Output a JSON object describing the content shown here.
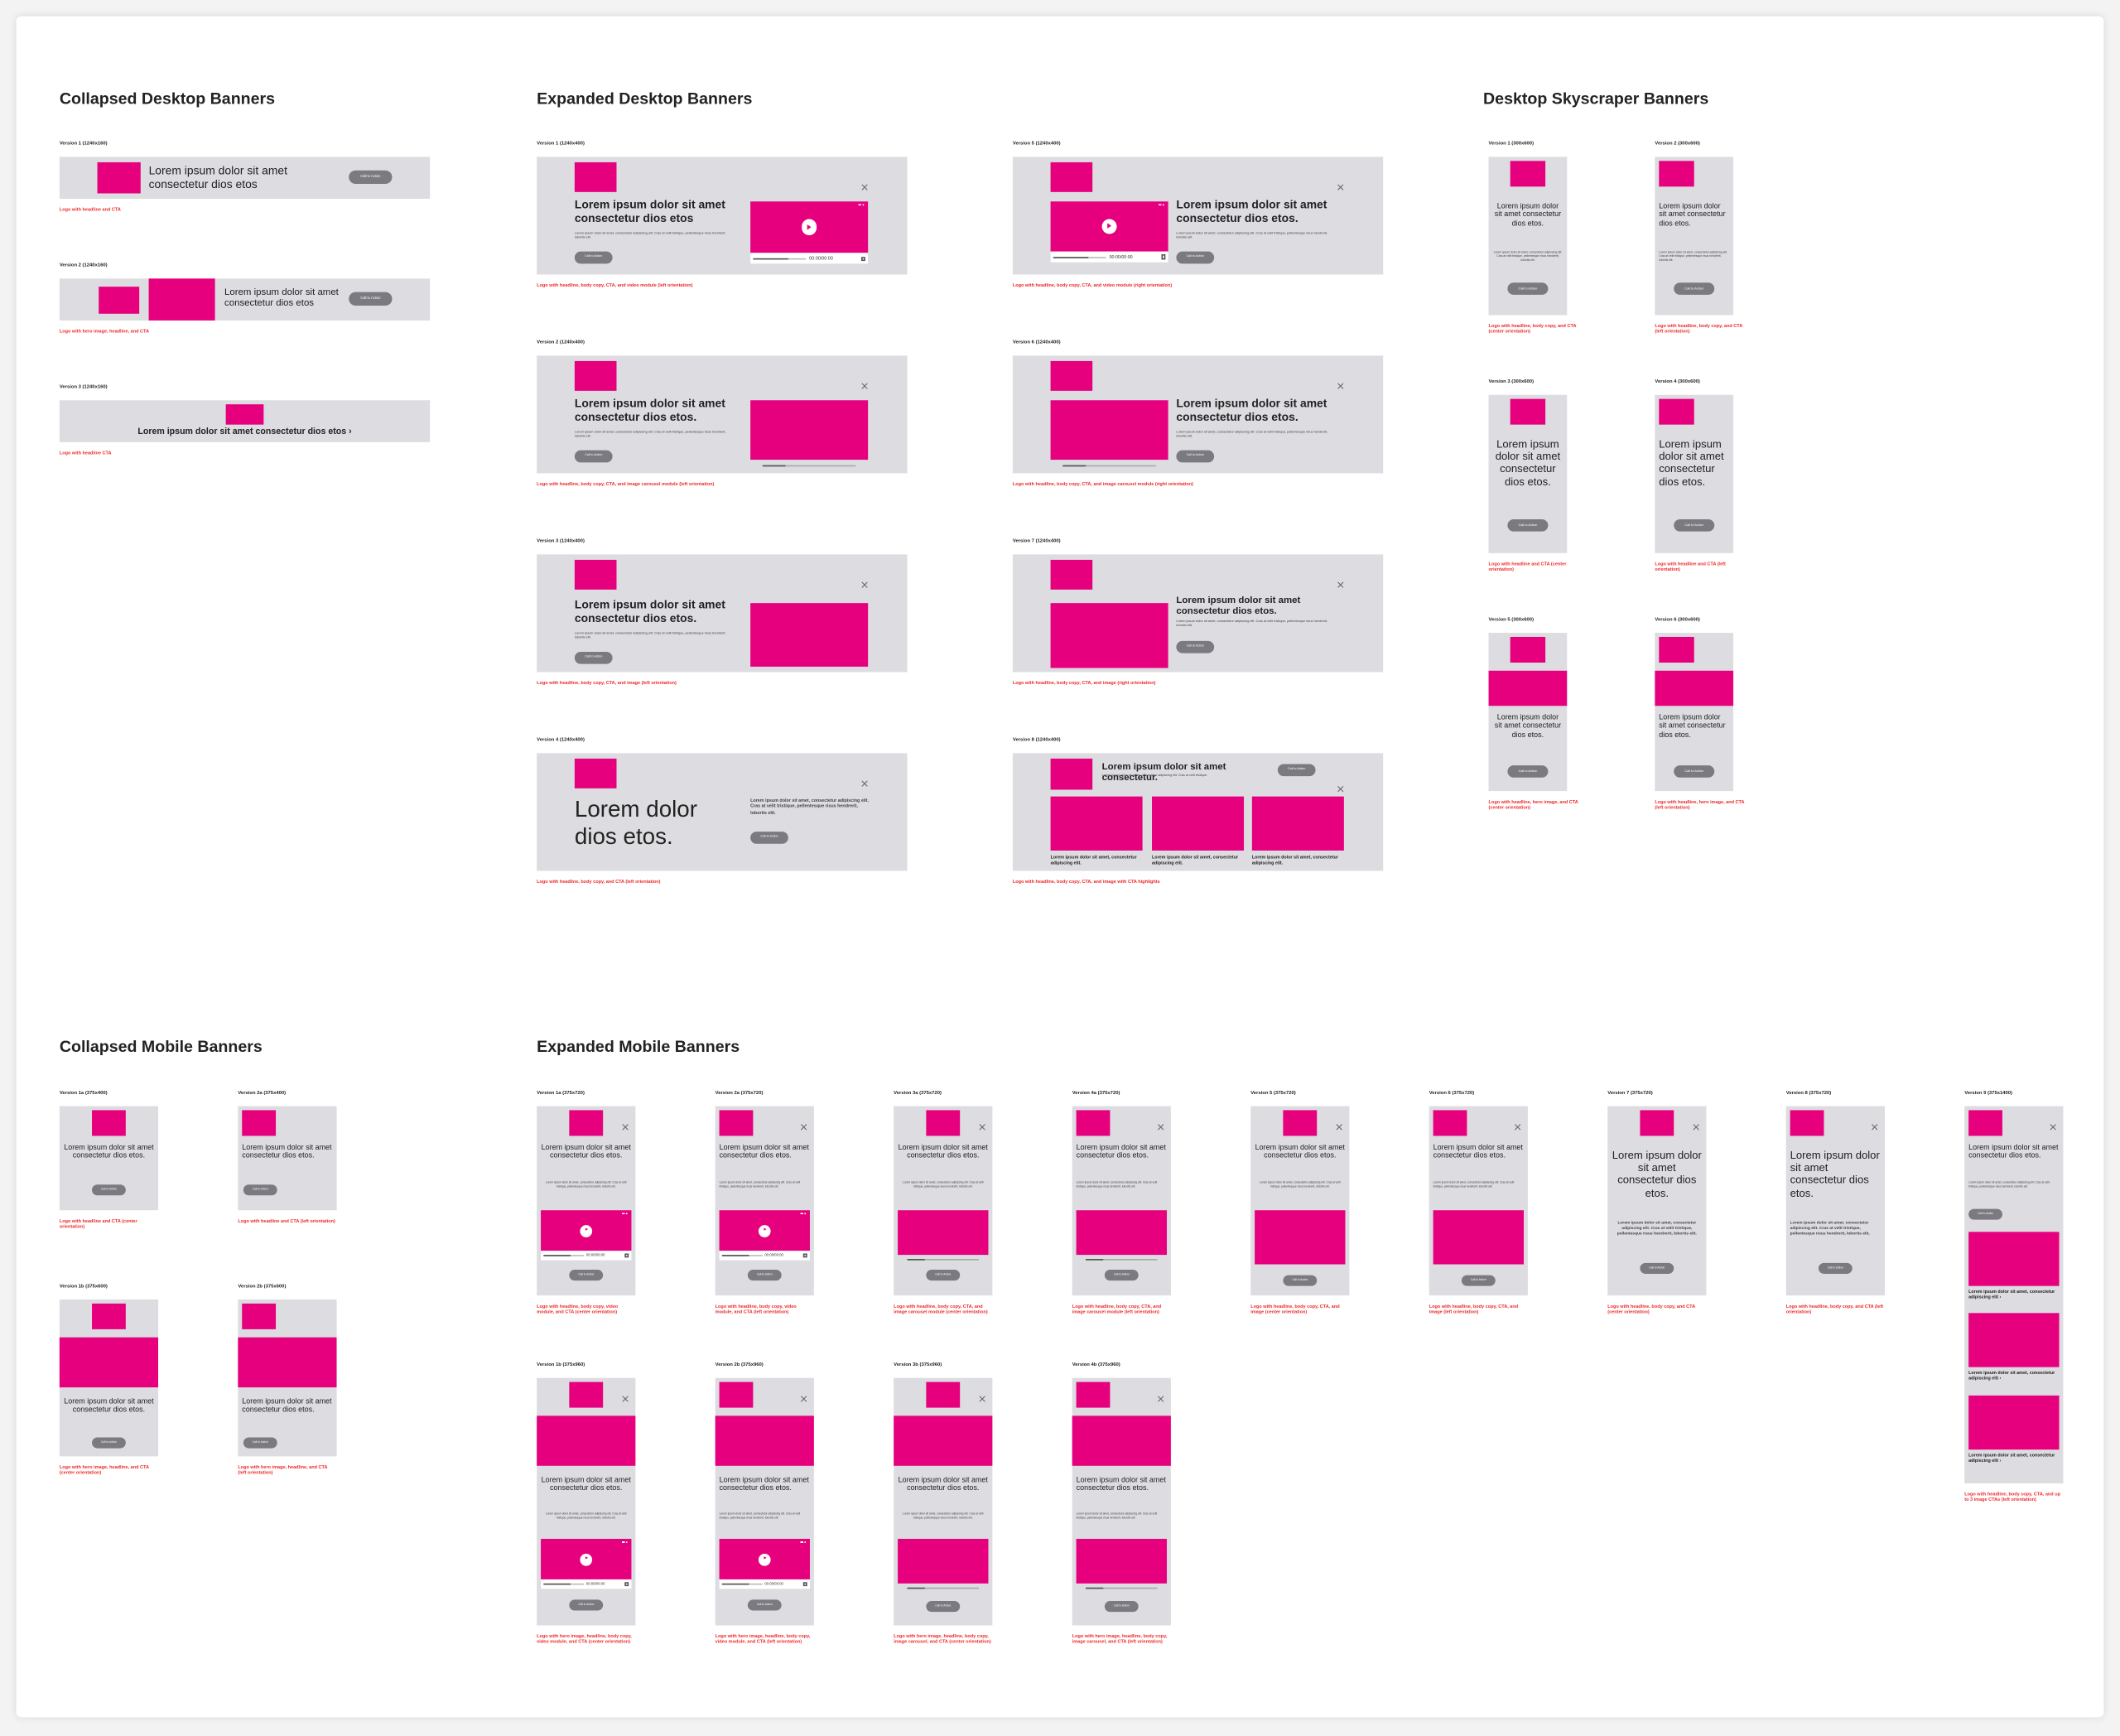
{
  "sections": [
    {
      "title": "Collapsed Desktop Banners",
      "banners": [
        {
          "label": "Version 1 (1240x160)",
          "headline": "Lorem ipsum dolor sit amet consectetur dios etos",
          "cta": "Call to Action",
          "caption": "Logo with headline and CTA"
        },
        {
          "label": "Version 2 (1240x160)",
          "headline": "Lorem ipsum dolor sit amet consectetur dios etos",
          "cta": "Call to Action",
          "caption": "Logo with hero image, headline, and CTA"
        },
        {
          "label": "Version 3 (1240x160)",
          "headline": "Lorem ipsum dolor sit amet consectetur dios etos ›",
          "caption": "Logo with headline CTA"
        }
      ]
    },
    {
      "title": "Expanded Desktop Banners",
      "banners": [
        {
          "label": "Version 1 (1240x400)",
          "headline": "Lorem ipsum dolor sit amet consectetur dios etos",
          "body": "Lorem ipsum dolor sit amet, consectetur adipiscing elit. Cras at velit tristique, pellentesque risus hendrerit, lobortis elit.",
          "cta": "Call to Action",
          "time": "00:00/00:00",
          "caption": "Logo with headline, body copy, CTA, and video module (left orientation)"
        },
        {
          "label": "Version 2 (1240x400)",
          "headline": "Lorem ipsum dolor sit amet consectetur dios etos.",
          "body": "Lorem ipsum dolor sit amet, consectetur adipiscing elit. Cras at velit tristique, pellentesque risus hendrerit, lobortis elit.",
          "cta": "Call to Action",
          "caption": "Logo with headline, body copy, CTA, and image carousel module (left orientation)"
        },
        {
          "label": "Version 3 (1240x400)",
          "headline": "Lorem ipsum dolor sit amet consectetur dios etos.",
          "body": "Lorem ipsum dolor sit amet, consectetur adipiscing elit. Cras at velit tristique, pellentesque risus hendrerit, lobortis elit.",
          "cta": "Call to Action",
          "caption": "Logo with headline, body copy, CTA, and image (left orientation)"
        },
        {
          "label": "Version 4 (1240x400)",
          "headline": "Lorem dolor dios etos.",
          "body": "Lorem ipsum dolor sit amet, consectetur adipiscing elit. Cras at velit tristique, pellentesque risus hendrerit, lobortis elit.",
          "cta": "Call to Action",
          "caption": "Logo with headline, body copy, and CTA (left orientation)"
        },
        {
          "label": "Version 5 (1240x400)",
          "headline": "Lorem ipsum dolor sit amet consectetur dios etos.",
          "body": "Lorem ipsum dolor sit amet, consectetur adipiscing elit. Cras at velit tristique, pellentesque risus hendrerit, lobortis elit.",
          "cta": "Call to Action",
          "time": "00:00/00:00",
          "caption": "Logo with headline, body copy, CTA, and video module (right orientation)"
        },
        {
          "label": "Version 6 (1240x400)",
          "headline": "Lorem ipsum dolor sit amet consectetur dios etos.",
          "body": "Lorem ipsum dolor sit amet, consectetur adipiscing elit. Cras at velit tristique, pellentesque risus hendrerit, lobortis elit.",
          "cta": "Call to Action",
          "caption": "Logo with headline, body copy, CTA, and image carousel module (right orientation)"
        },
        {
          "label": "Version 7 (1240x400)",
          "headline": "Lorem ipsum dolor sit amet consectetur dios etos.",
          "body": "Lorem ipsum dolor sit amet, consectetur adipiscing elit. Cras at velit tristique, pellentesque risus hendrerit, lobortis elit.",
          "cta": "Call to Action",
          "caption": "Logo with headline, body copy, CTA, and image (right orientation)"
        },
        {
          "label": "Version 8 (1240x400)",
          "headline": "Lorem ipsum dolor sit amet consectetur.",
          "body": "Lorem ipsum dolor sit amet, consectetur adipiscing elit. Cras at velit tristique.",
          "cta": "Call to Action",
          "highlights": [
            "Lorem ipsum dolor sit amet, consectetur adipiscing elit.",
            "Lorem ipsum dolor sit amet, consectetur adipiscing elit.",
            "Lorem ipsum dolor sit amet, consectetur adipiscing elit."
          ],
          "caption": "Logo with headline, body copy, CTA, and image with CTA highlights"
        }
      ]
    },
    {
      "title": "Desktop Skyscraper Banners",
      "banners": [
        {
          "label": "Version 1 (300x600)",
          "headline": "Lorem ipsum dolor sit amet consectetur dios etos.",
          "body": "Lorem ipsum dolor sit amet, consectetur adipiscing elit. Cras at velit tristique, pellentesque risus hendrerit, lobortis elit.",
          "cta": "Call to Action",
          "caption": "Logo with headline, body copy, and CTA (center orientation)"
        },
        {
          "label": "Version 2 (300x600)",
          "headline": "Lorem ipsum dolor sit amet consectetur dios etos.",
          "body": "Lorem ipsum dolor sit amet, consectetur adipiscing elit. Cras at velit tristique, pellentesque risus hendrerit, lobortis elit.",
          "cta": "Call to Action",
          "caption": "Logo with headline, body copy, and CTA (left orientation)"
        },
        {
          "label": "Version 3 (300x600)",
          "headline": "Lorem ipsum dolor sit amet consectetur dios etos.",
          "cta": "Call to Action",
          "caption": "Logo with headline and CTA (center orientation)"
        },
        {
          "label": "Version 4 (300x600)",
          "headline": "Lorem ipsum dolor sit amet consectetur dios etos.",
          "cta": "Call to Action",
          "caption": "Logo with headline and CTA (left orientation)"
        },
        {
          "label": "Version 5 (300x600)",
          "headline": "Lorem ipsum dolor sit amet consectetur dios etos.",
          "cta": "Call to Action",
          "caption": "Logo with headline, hero image, and CTA (center orientation)"
        },
        {
          "label": "Version 6 (300x600)",
          "headline": "Lorem ipsum dolor sit amet consectetur dios etos.",
          "cta": "Call to Action",
          "caption": "Logo with headline, hero image, and CTA (left orientation)"
        }
      ]
    },
    {
      "title": "Collapsed Mobile Banners",
      "banners": [
        {
          "label": "Version 1a (375x400)",
          "headline": "Lorem ipsum dolor sit amet consectetur dios etos.",
          "cta": "Call to Action",
          "caption": "Logo with headline and CTA (center orientation)"
        },
        {
          "label": "Version 2a (375x400)",
          "headline": "Lorem ipsum dolor sit amet consectetur dios etos.",
          "cta": "Call to Action",
          "caption": "Logo with headline and CTA (left orientation)"
        },
        {
          "label": "Version 1b (375x600)",
          "headline": "Lorem ipsum dolor sit amet consectetur dios etos.",
          "cta": "Call to Action",
          "caption": "Logo with hero image, headline, and CTA (center orientation)"
        },
        {
          "label": "Version 2b (375x600)",
          "headline": "Lorem ipsum dolor sit amet consectetur dios etos.",
          "cta": "Call to Action",
          "caption": "Logo with hero image, headline, and CTA (left orientation)"
        }
      ]
    },
    {
      "title": "Expanded Mobile Banners",
      "banners": [
        {
          "label": "Version 1a (375x720)",
          "headline": "Lorem ipsum dolor sit amet consectetur dios etos.",
          "body": "Lorem ipsum dolor sit amet, consectetur adipiscing elit. Cras at velit tristique, pellentesque risus hendrerit, lobortis elit.",
          "cta": "Call to Action",
          "time": "00:00/00:00",
          "caption": "Logo with headline, body copy, video module, and CTA (center orientation)"
        },
        {
          "label": "Version 2a (375x720)",
          "headline": "Lorem ipsum dolor sit amet consectetur dios etos.",
          "body": "Lorem ipsum dolor sit amet, consectetur adipiscing elit. Cras at velit tristique, pellentesque risus hendrerit, lobortis elit.",
          "cta": "Call to Action",
          "time": "00:00/00:00",
          "caption": "Logo with headline, body copy, video module, and CTA (left orientation)"
        },
        {
          "label": "Version 3a (375x720)",
          "headline": "Lorem ipsum dolor sit amet consectetur dios etos.",
          "body": "Lorem ipsum dolor sit amet, consectetur adipiscing elit. Cras at velit tristique, pellentesque risus hendrerit, lobortis elit.",
          "cta": "Call to Action",
          "caption": "Logo with headline, body copy, CTA, and image carousel module (center orientation)"
        },
        {
          "label": "Version 4a (375x720)",
          "headline": "Lorem ipsum dolor sit amet consectetur dios etos.",
          "body": "Lorem ipsum dolor sit amet, consectetur adipiscing elit. Cras at velit tristique, pellentesque risus hendrerit, lobortis elit.",
          "cta": "Call to Action",
          "caption": "Logo with headline, body copy, CTA, and image carousel module (left orientation)"
        },
        {
          "label": "Version 5 (375x720)",
          "headline": "Lorem ipsum dolor sit amet consectetur dios etos.",
          "body": "Lorem ipsum dolor sit amet, consectetur adipiscing elit. Cras at velit tristique, pellentesque risus hendrerit, lobortis elit.",
          "cta": "Call to Action",
          "caption": "Logo with headline, body copy, CTA, and image (center orientation)"
        },
        {
          "label": "Version 6 (375x720)",
          "headline": "Lorem ipsum dolor sit amet consectetur dios etos.",
          "body": "Lorem ipsum dolor sit amet, consectetur adipiscing elit. Cras at velit tristique, pellentesque risus hendrerit, lobortis elit.",
          "cta": "Call to Action",
          "caption": "Logo with headline, body copy, CTA, and image (left orientation)"
        },
        {
          "label": "Version 7 (375x720)",
          "headline": "Lorem ipsum dolor sit amet consectetur dios etos.",
          "body": "Lorem ipsum dolor sit amet, consectetur adipiscing elit. Cras at velit tristique, pellentesque risus hendrerit, lobortis elit.",
          "cta": "Call to Action",
          "caption": "Logo with headline, body copy, and CTA (center orientation)"
        },
        {
          "label": "Version 8 (375x720)",
          "headline": "Lorem ipsum dolor sit amet consectetur dios etos.",
          "body": "Lorem ipsum dolor sit amet, consectetur adipiscing elit. Cras at velit tristique, pellentesque risus hendrerit, lobortis elit.",
          "cta": "Call to Action",
          "caption": "Logo with headline, body copy, and CTA (left orientation)"
        },
        {
          "label": "Version 9 (375x1400)",
          "headline": "Lorem ipsum dolor sit amet consectetur dios etos.",
          "body": "Lorem ipsum dolor sit amet, consectetur adipiscing elit. Cras at velit tristique, pellentesque risus hendrerit, lobortis elit.",
          "cta": "Call to Action",
          "highlights": [
            "Lorem ipsum dolor sit amet, consectetur adipiscing elit ›",
            "Lorem ipsum dolor sit amet, consectetur adipiscing elit ›",
            "Lorem ipsum dolor sit amet, consectetur adipiscing elit ›"
          ],
          "caption": "Logo with headline, body copy, CTA, and up to 3 image CTAs (left orientation)"
        },
        {
          "label": "Version 1b (375x960)",
          "headline": "Lorem ipsum dolor sit amet consectetur dios etos.",
          "body": "Lorem ipsum dolor sit amet, consectetur adipiscing elit. Cras at velit tristique, pellentesque risus hendrerit, lobortis elit.",
          "cta": "Call to Action",
          "time": "00:00/00:00",
          "caption": "Logo with hero image, headline, body copy, video module, and CTA (center orientation)"
        },
        {
          "label": "Version 2b (375x960)",
          "headline": "Lorem ipsum dolor sit amet consectetur dios etos.",
          "body": "Lorem ipsum dolor sit amet, consectetur adipiscing elit. Cras at velit tristique, pellentesque risus hendrerit, lobortis elit.",
          "cta": "Call to Action",
          "time": "00:00/00:00",
          "caption": "Logo with hero image, headline, body copy, video module, and CTA (left orientation)"
        },
        {
          "label": "Version 3b (375x960)",
          "headline": "Lorem ipsum dolor sit amet consectetur dios etos.",
          "body": "Lorem ipsum dolor sit amet, consectetur adipiscing elit. Cras at velit tristique, pellentesque risus hendrerit, lobortis elit.",
          "cta": "Call to Action",
          "caption": "Logo with hero image, headline, body copy, image carousel, and CTA (center orientation)"
        },
        {
          "label": "Version 4b (375x960)",
          "headline": "Lorem ipsum dolor sit amet consectetur dios etos.",
          "body": "Lorem ipsum dolor sit amet, consectetur adipiscing elit. Cras at velit tristique, pellentesque risus hendrerit, lobortis elit.",
          "cta": "Call to Action",
          "caption": "Logo with hero image, headline, body copy, image carousel, and CTA (left orientation)"
        }
      ]
    }
  ]
}
